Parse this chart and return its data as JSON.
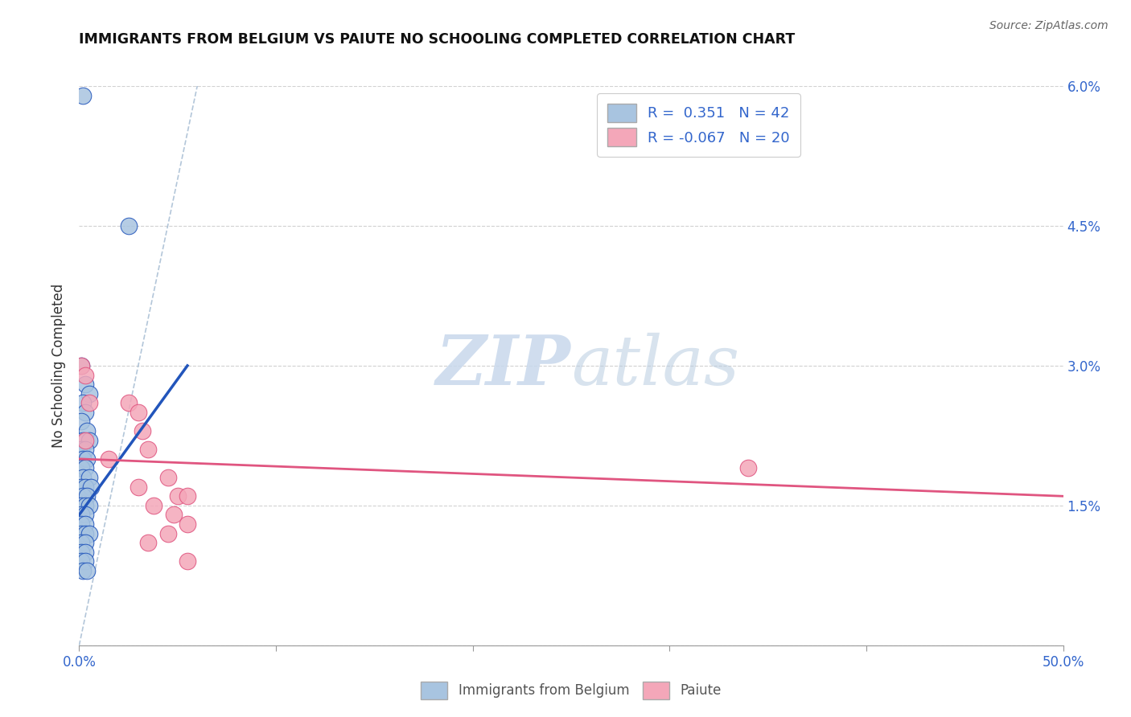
{
  "title": "IMMIGRANTS FROM BELGIUM VS PAIUTE NO SCHOOLING COMPLETED CORRELATION CHART",
  "source": "Source: ZipAtlas.com",
  "ylabel": "No Schooling Completed",
  "legend_label1": "Immigrants from Belgium",
  "legend_label2": "Paiute",
  "r1": 0.351,
  "n1": 42,
  "r2": -0.067,
  "n2": 20,
  "xlim": [
    0.0,
    0.5
  ],
  "ylim": [
    0.0,
    0.06
  ],
  "yticks": [
    0.0,
    0.015,
    0.03,
    0.045,
    0.06
  ],
  "ytick_labels": [
    "",
    "1.5%",
    "3.0%",
    "4.5%",
    "6.0%"
  ],
  "color_blue": "#a8c4e0",
  "color_pink": "#f4a7b9",
  "color_blue_line": "#2255bb",
  "color_pink_line": "#e05580",
  "color_diag": "#a0b8d0",
  "watermark_zip": "ZIP",
  "watermark_atlas": "atlas",
  "blue_points": [
    [
      0.002,
      0.059
    ],
    [
      0.025,
      0.045
    ],
    [
      0.001,
      0.03
    ],
    [
      0.003,
      0.028
    ],
    [
      0.005,
      0.027
    ],
    [
      0.002,
      0.026
    ],
    [
      0.003,
      0.025
    ],
    [
      0.001,
      0.024
    ],
    [
      0.004,
      0.023
    ],
    [
      0.002,
      0.022
    ],
    [
      0.005,
      0.022
    ],
    [
      0.001,
      0.021
    ],
    [
      0.003,
      0.021
    ],
    [
      0.002,
      0.02
    ],
    [
      0.004,
      0.02
    ],
    [
      0.001,
      0.019
    ],
    [
      0.003,
      0.019
    ],
    [
      0.002,
      0.018
    ],
    [
      0.005,
      0.018
    ],
    [
      0.001,
      0.017
    ],
    [
      0.003,
      0.017
    ],
    [
      0.006,
      0.017
    ],
    [
      0.002,
      0.016
    ],
    [
      0.004,
      0.016
    ],
    [
      0.001,
      0.015
    ],
    [
      0.003,
      0.015
    ],
    [
      0.005,
      0.015
    ],
    [
      0.001,
      0.014
    ],
    [
      0.003,
      0.014
    ],
    [
      0.001,
      0.013
    ],
    [
      0.003,
      0.013
    ],
    [
      0.001,
      0.012
    ],
    [
      0.003,
      0.012
    ],
    [
      0.005,
      0.012
    ],
    [
      0.001,
      0.011
    ],
    [
      0.003,
      0.011
    ],
    [
      0.001,
      0.01
    ],
    [
      0.003,
      0.01
    ],
    [
      0.001,
      0.009
    ],
    [
      0.003,
      0.009
    ],
    [
      0.002,
      0.008
    ],
    [
      0.004,
      0.008
    ]
  ],
  "pink_points": [
    [
      0.001,
      0.03
    ],
    [
      0.003,
      0.029
    ],
    [
      0.005,
      0.026
    ],
    [
      0.025,
      0.026
    ],
    [
      0.03,
      0.025
    ],
    [
      0.032,
      0.023
    ],
    [
      0.003,
      0.022
    ],
    [
      0.035,
      0.021
    ],
    [
      0.015,
      0.02
    ],
    [
      0.045,
      0.018
    ],
    [
      0.03,
      0.017
    ],
    [
      0.05,
      0.016
    ],
    [
      0.055,
      0.016
    ],
    [
      0.038,
      0.015
    ],
    [
      0.048,
      0.014
    ],
    [
      0.055,
      0.013
    ],
    [
      0.045,
      0.012
    ],
    [
      0.035,
      0.011
    ],
    [
      0.055,
      0.009
    ],
    [
      0.34,
      0.019
    ]
  ],
  "blue_line_x": [
    0.0,
    0.055
  ],
  "blue_line_y": [
    0.014,
    0.03
  ],
  "pink_line_x": [
    0.0,
    0.5
  ],
  "pink_line_y": [
    0.02,
    0.016
  ]
}
